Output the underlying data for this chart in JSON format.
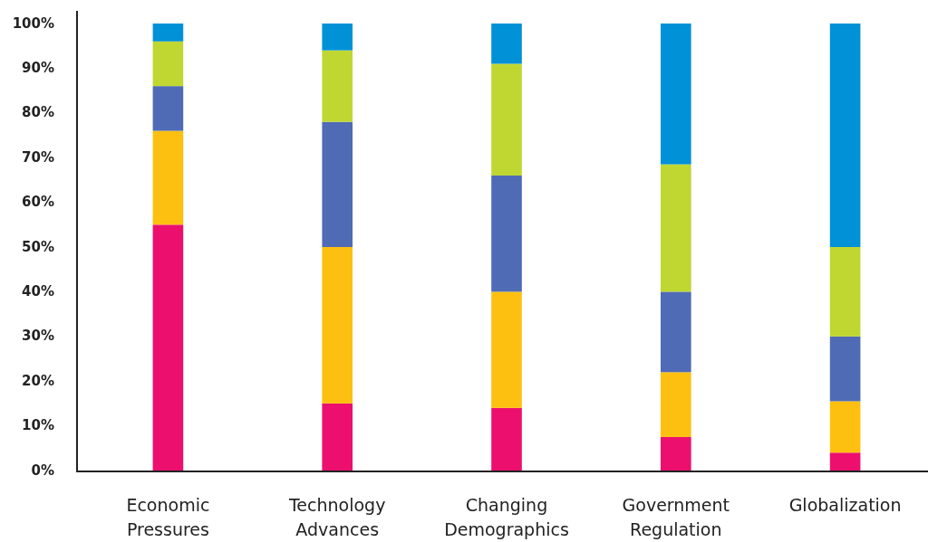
{
  "chart_data": {
    "type": "bar",
    "stacked": true,
    "categories": [
      "Economic Pressures",
      "Technology Advances",
      "Changing Demographics",
      "Government Regulation",
      "Globalization"
    ],
    "series": [
      {
        "color": "#ec0f6e",
        "values": [
          55,
          15,
          14,
          7.5,
          4
        ]
      },
      {
        "color": "#fdc010",
        "values": [
          21,
          35,
          26,
          14.5,
          11.5
        ]
      },
      {
        "color": "#4f6bb5",
        "values": [
          10,
          28,
          26,
          18,
          14.5
        ]
      },
      {
        "color": "#bfd730",
        "values": [
          10,
          16,
          25,
          28.5,
          20
        ]
      },
      {
        "color": "#0091d7",
        "values": [
          4,
          6,
          9,
          31.5,
          50
        ]
      }
    ],
    "ylim": [
      0,
      100
    ],
    "yticks": [
      {
        "value": 0,
        "label": "0%"
      },
      {
        "value": 10,
        "label": "10%"
      },
      {
        "value": 20,
        "label": "20%"
      },
      {
        "value": 30,
        "label": "30%"
      },
      {
        "value": 40,
        "label": "40%"
      },
      {
        "value": 50,
        "label": "50%"
      },
      {
        "value": 60,
        "label": "60%"
      },
      {
        "value": 70,
        "label": "70%"
      },
      {
        "value": 80,
        "label": "80%"
      },
      {
        "value": 90,
        "label": "90%"
      },
      {
        "value": 100,
        "label": "100%"
      }
    ]
  }
}
